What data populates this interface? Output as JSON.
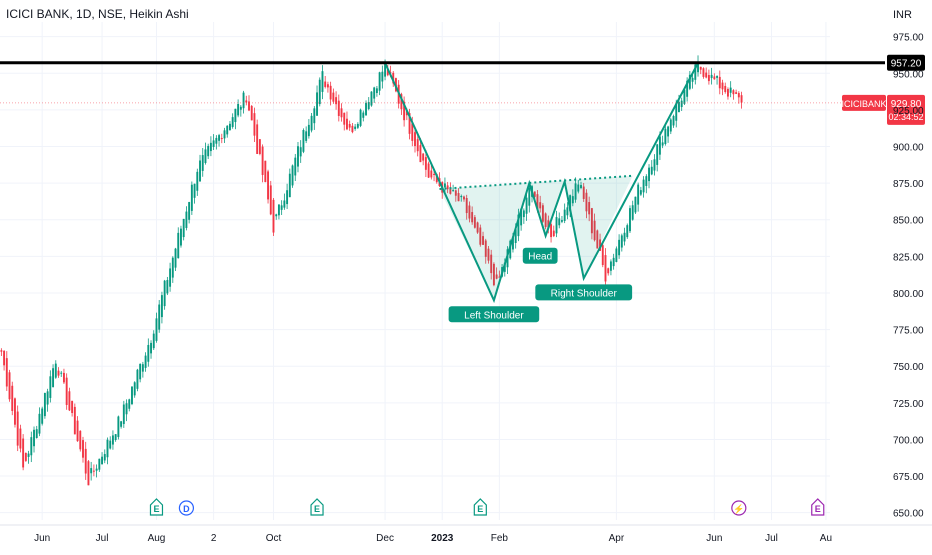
{
  "header": {
    "chart_title": "ICICI BANK, 1D, NSE, Heikin Ashi",
    "currency": "INR"
  },
  "chart_data": {
    "type": "candlestick",
    "title": "ICICI BANK, 1D, NSE, Heikin Ashi",
    "xlabel": "",
    "ylabel": "INR",
    "ylim": [
      645,
      985
    ],
    "y_ticks": [
      "975.00",
      "950.00",
      "925.00",
      "900.00",
      "875.00",
      "850.00",
      "825.00",
      "800.00",
      "775.00",
      "750.00",
      "725.00",
      "700.00",
      "675.00",
      "650.00"
    ],
    "x_months": [
      "Jun",
      "Jul",
      "Aug",
      "2",
      "Oct",
      "Dec",
      "2023",
      "Feb",
      "Apr",
      "Jun",
      "Jul",
      "Au"
    ],
    "x_month_bar": [
      15,
      37,
      57,
      78,
      100,
      141,
      162,
      183,
      226,
      262,
      283,
      303
    ],
    "total_bars": 305,
    "grid": true,
    "resistance": {
      "value": 957.2,
      "label": "957.20",
      "color": "#000000"
    },
    "last_price": {
      "symbol": "ICICIBANK",
      "value": 929.8,
      "label": "929.80",
      "countdown": "02:34:52",
      "color": "#f23645"
    },
    "keypoints": [
      {
        "bar": 0,
        "value": 760
      },
      {
        "bar": 8,
        "value": 680
      },
      {
        "bar": 20,
        "value": 755
      },
      {
        "bar": 32,
        "value": 672
      },
      {
        "bar": 44,
        "value": 715
      },
      {
        "bar": 55,
        "value": 770
      },
      {
        "bar": 72,
        "value": 885
      },
      {
        "bar": 90,
        "value": 935
      },
      {
        "bar": 100,
        "value": 845
      },
      {
        "bar": 118,
        "value": 948
      },
      {
        "bar": 128,
        "value": 910
      },
      {
        "bar": 141,
        "value": 955
      },
      {
        "bar": 157,
        "value": 880
      },
      {
        "bar": 170,
        "value": 860
      },
      {
        "bar": 182,
        "value": 805
      },
      {
        "bar": 194,
        "value": 872
      },
      {
        "bar": 202,
        "value": 840
      },
      {
        "bar": 212,
        "value": 876
      },
      {
        "bar": 222,
        "value": 812
      },
      {
        "bar": 234,
        "value": 870
      },
      {
        "bar": 246,
        "value": 920
      },
      {
        "bar": 256,
        "value": 955
      },
      {
        "bar": 262,
        "value": 945
      },
      {
        "bar": 272,
        "value": 930
      }
    ],
    "pattern": {
      "fill": "#089981",
      "v_lines": [
        [
          {
            "bar": 141,
            "value": 957
          },
          {
            "bar": 181,
            "value": 795
          },
          {
            "bar": 194,
            "value": 875
          },
          {
            "bar": 200,
            "value": 839
          },
          {
            "bar": 207,
            "value": 876
          },
          {
            "bar": 214,
            "value": 810
          },
          {
            "bar": 256,
            "value": 957
          }
        ]
      ],
      "neckline": [
        {
          "bar": 161,
          "value": 871
        },
        {
          "bar": 232,
          "value": 880
        }
      ],
      "labels": [
        {
          "text": "Left Shoulder",
          "bar": 181,
          "value": 795
        },
        {
          "text": "Head",
          "bar": 198,
          "value": 835
        },
        {
          "text": "Right Shoulder",
          "bar": 214,
          "value": 810
        }
      ]
    },
    "events": [
      {
        "glyph": "E",
        "bar": 57,
        "color": "#089981"
      },
      {
        "glyph": "D",
        "bar": 68,
        "color": "#2962ff"
      },
      {
        "glyph": "E",
        "bar": 116,
        "color": "#089981"
      },
      {
        "glyph": "E",
        "bar": 176,
        "color": "#089981"
      },
      {
        "glyph": "⚡",
        "bar": 271,
        "color": "#9c27b0"
      },
      {
        "glyph": "E",
        "bar": 300,
        "color": "#9c27b0"
      }
    ],
    "colors": {
      "up": "#089981",
      "down": "#f23645"
    }
  }
}
